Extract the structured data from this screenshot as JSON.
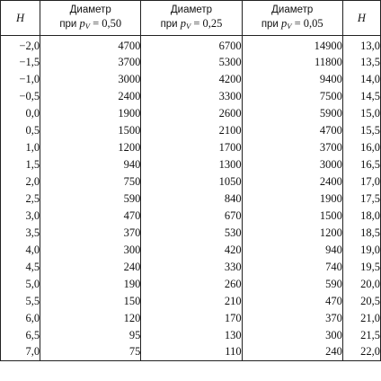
{
  "table": {
    "headers": {
      "h_left": "H",
      "col1_line1": "Диаметр",
      "col1_prefix": "при",
      "col1_var": "p",
      "col1_sub": "V",
      "col1_value": "= 0,50",
      "col2_line1": "Диаметр",
      "col2_prefix": "при",
      "col2_var": "p",
      "col2_sub": "V",
      "col2_value": "= 0,25",
      "col3_line1": "Диаметр",
      "col3_prefix": "при",
      "col3_var": "p",
      "col3_sub": "V",
      "col3_value": "= 0,05",
      "h_right": "H"
    },
    "rows": [
      {
        "h1": "−2,0",
        "d1": "4700",
        "d2": "6700",
        "d3": "14900",
        "h2": "13,0"
      },
      {
        "h1": "−1,5",
        "d1": "3700",
        "d2": "5300",
        "d3": "11800",
        "h2": "13,5"
      },
      {
        "h1": "−1,0",
        "d1": "3000",
        "d2": "4200",
        "d3": "9400",
        "h2": "14,0"
      },
      {
        "h1": "−0,5",
        "d1": "2400",
        "d2": "3300",
        "d3": "7500",
        "h2": "14,5"
      },
      {
        "h1": "0,0",
        "d1": "1900",
        "d2": "2600",
        "d3": "5900",
        "h2": "15,0"
      },
      {
        "h1": "0,5",
        "d1": "1500",
        "d2": "2100",
        "d3": "4700",
        "h2": "15,5"
      },
      {
        "h1": "1,0",
        "d1": "1200",
        "d2": "1700",
        "d3": "3700",
        "h2": "16,0"
      },
      {
        "h1": "1,5",
        "d1": "940",
        "d2": "1300",
        "d3": "3000",
        "h2": "16,5"
      },
      {
        "h1": "2,0",
        "d1": "750",
        "d2": "1050",
        "d3": "2400",
        "h2": "17,0"
      },
      {
        "h1": "2,5",
        "d1": "590",
        "d2": "840",
        "d3": "1900",
        "h2": "17,5"
      },
      {
        "h1": "3,0",
        "d1": "470",
        "d2": "670",
        "d3": "1500",
        "h2": "18,0"
      },
      {
        "h1": "3,5",
        "d1": "370",
        "d2": "530",
        "d3": "1200",
        "h2": "18,5"
      },
      {
        "h1": "4,0",
        "d1": "300",
        "d2": "420",
        "d3": "940",
        "h2": "19,0"
      },
      {
        "h1": "4,5",
        "d1": "240",
        "d2": "330",
        "d3": "740",
        "h2": "19,5"
      },
      {
        "h1": "5,0",
        "d1": "190",
        "d2": "260",
        "d3": "590",
        "h2": "20,0"
      },
      {
        "h1": "5,5",
        "d1": "150",
        "d2": "210",
        "d3": "470",
        "h2": "20,5"
      },
      {
        "h1": "6,0",
        "d1": "120",
        "d2": "170",
        "d3": "370",
        "h2": "21,0"
      },
      {
        "h1": "6,5",
        "d1": "95",
        "d2": "130",
        "d3": "300",
        "h2": "21,5"
      },
      {
        "h1": "7,0",
        "d1": "75",
        "d2": "110",
        "d3": "240",
        "h2": "22,0"
      }
    ]
  }
}
